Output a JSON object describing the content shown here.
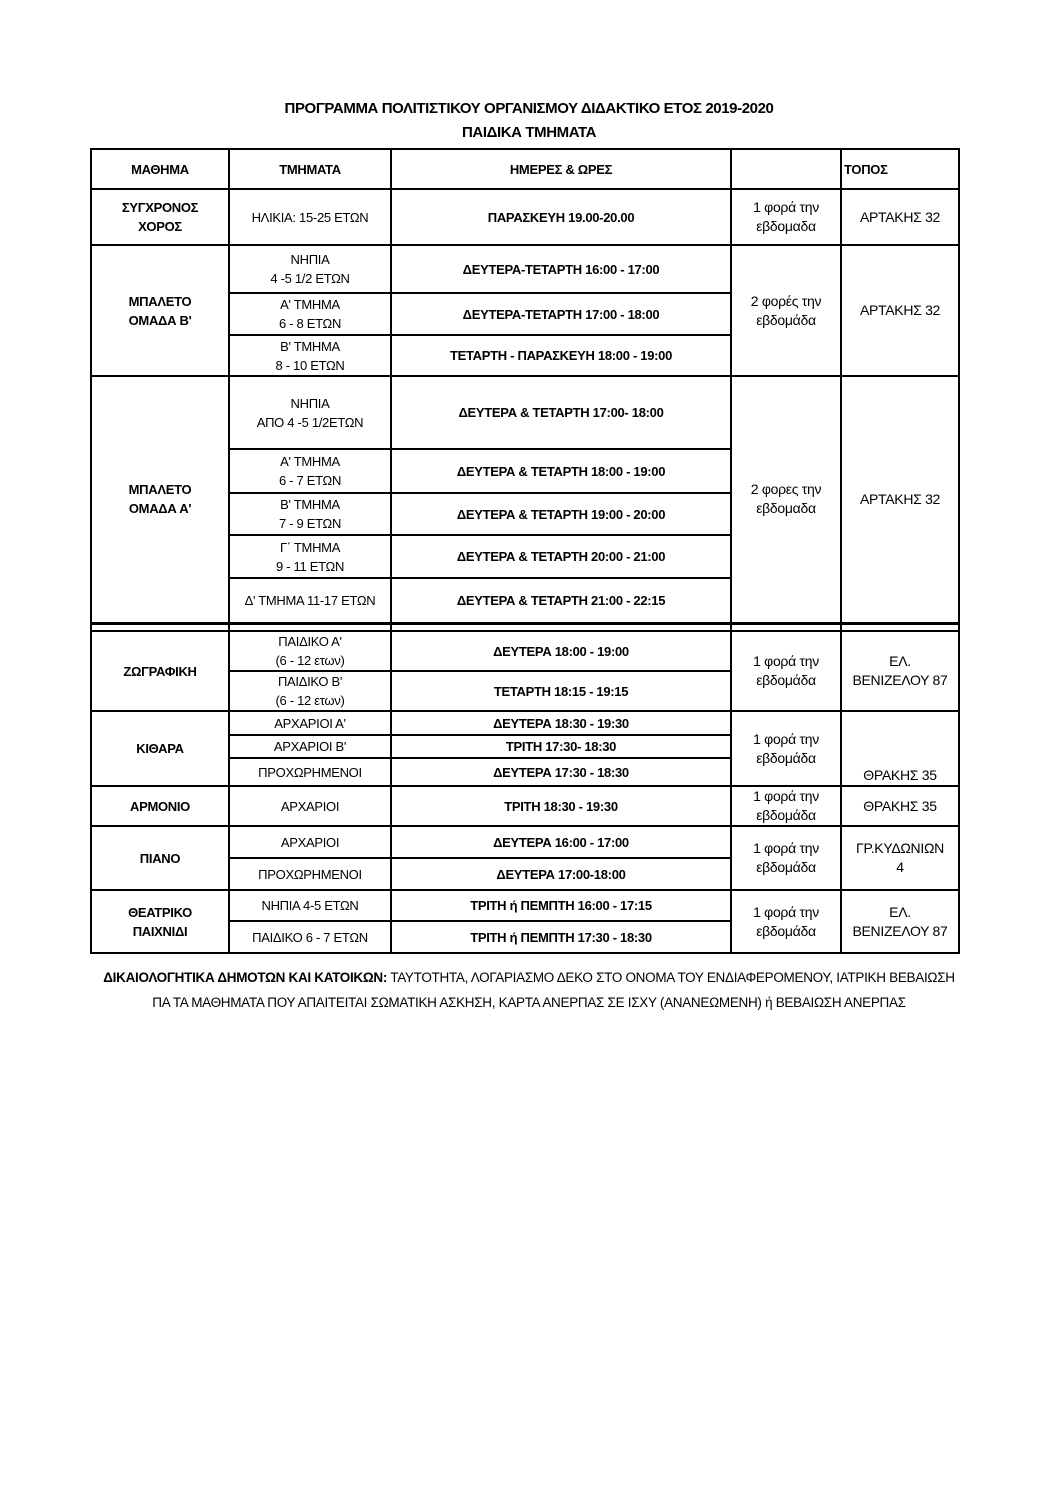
{
  "title": "ΠΡΟΓΡΑΜΜΑ ΠΟΛΙΤΙΣΤΙΚΟΥ ΟΡΓΑΝΙΣΜΟΥ ΔΙΔΑΚΤΙΚΟ ΕΤΟΣ 2019-2020",
  "subtitle": "ΠΑΙΔΙΚΑ ΤΜΗΜΑΤΑ",
  "headers": [
    "ΜΑΘΗΜΑ",
    "ΤΜΗΜΑΤΑ",
    "ΗΜΕΡΕΣ & ΩΡΕΣ",
    "",
    "ΤΟΠΟΣ"
  ],
  "subjects": [
    {
      "name": "ΣΥΓΧΡΟΝΟΣ\nΧΟΡΟΣ",
      "frequency": "1 φορά την\nεβδομαδα",
      "place": "ΑΡΤΑΚΗΣ 32",
      "sections": [
        {
          "group": "ΗΛΙΚΙΑ: 15-25 ΕΤΩΝ",
          "schedule": "ΠΑΡΑΣΚΕΥΗ 19.00-20.00"
        }
      ]
    },
    {
      "name": "ΜΠΑΛΕΤΟ\nΟΜΑΔΑ Β'",
      "frequency": "2 φορές την\nεβδομάδα",
      "place": "ΑΡΤΑΚΗΣ 32",
      "sections": [
        {
          "group": "ΝΗΠΙΑ\n4 -5 1/2 ΕΤΩΝ",
          "schedule": "ΔΕΥΤΕΡΑ-ΤΕΤΑΡΤΗ    16:00 - 17:00"
        },
        {
          "group": "Α' ΤΜΗΜΑ\n6 - 8 ΕΤΩΝ",
          "schedule": "ΔΕΥΤΕΡΑ-ΤΕΤΑΡΤΗ    17:00 - 18:00"
        },
        {
          "group": "Β' ΤΜΗΜΑ\n8 - 10 ΕΤΩΝ",
          "schedule": "ΤΕΤΑΡΤΗ - ΠΑΡΑΣΚΕΥΗ     18:00 - 19:00"
        }
      ]
    },
    {
      "name": "ΜΠΑΛΕΤΟ\nΟΜΑΔΑ Α'",
      "frequency": "2 φορες την\nεβδομαδα",
      "place": "ΑΡΤΑΚΗΣ 32",
      "sections": [
        {
          "group": "ΝΗΠΙΑ\nΑΠΟ 4 -5 1/2ΕΤΩΝ",
          "schedule": "ΔΕΥΤΕΡΑ & ΤΕΤΑΡΤΗ     17:00- 18:00"
        },
        {
          "group": "Α' ΤΜΗΜΑ\n6 - 7 ΕΤΩΝ",
          "schedule": "ΔΕΥΤΕΡΑ & ΤΕΤΑΡΤΗ     18:00 - 19:00"
        },
        {
          "group": "Β' ΤΜΗΜΑ\n7 - 9 ΕΤΩΝ",
          "schedule": "ΔΕΥΤΕΡΑ & ΤΕΤΑΡΤΗ     19:00 - 20:00"
        },
        {
          "group": "Γ΄ ΤΜΗΜΑ\n9 - 11 ΕΤΩΝ",
          "schedule": "ΔΕΥΤΕΡΑ & ΤΕΤΑΡΤΗ     20:00 - 21:00"
        },
        {
          "group": "Δ' ΤΜΗΜΑ 11-17 ΕΤΩΝ",
          "schedule": "ΔΕΥΤΕΡΑ & ΤΕΤΑΡΤΗ  21:00 - 22:15"
        }
      ]
    },
    {
      "name": "ΖΩΓΡΑΦΙΚΗ",
      "frequency": "1 φορά την\nεβδομάδα",
      "place": "ΕΛ.\nΒΕΝΙΖΕΛΟΥ 87",
      "sections": [
        {
          "group": "ΠΑΙΔΙΚΟ Α'\n(6 - 12 ετων)",
          "schedule": "ΔΕΥΤΕΡΑ    18:00 - 19:00"
        },
        {
          "group": "ΠΑΙΔΙΚΟ Β'\n(6 - 12 ετων)",
          "schedule": "ΤΕΤΑΡΤΗ     18:15 - 19:15"
        }
      ]
    },
    {
      "name": "ΚΙΘΑΡΑ",
      "frequency": "1 φορά την\nεβδομάδα",
      "place": "ΘΡΑΚΗΣ 35",
      "sections": [
        {
          "group": "ΑΡΧΑΡΙΟΙ Α'",
          "schedule": "ΔΕΥΤΕΡΑ 18:30 - 19:30"
        },
        {
          "group": "ΑΡΧΑΡΙΟΙ Β'",
          "schedule": "ΤΡΙΤΗ 17:30- 18:30"
        },
        {
          "group": "ΠΡΟΧΩΡΗΜΕΝΟΙ",
          "schedule": "ΔΕΥΤΕΡΑ 17:30 - 18:30"
        }
      ]
    },
    {
      "name": "ΑΡΜΟΝΙΟ",
      "frequency": "1 φορά την\nεβδομάδα",
      "place": "ΘΡΑΚΗΣ 35",
      "sections": [
        {
          "group": "ΑΡΧΑΡΙΟΙ",
          "schedule": "ΤΡΙΤΗ 18:30 - 19:30"
        }
      ]
    },
    {
      "name": "ΠΙΑΝΟ",
      "frequency": "1 φορά την\nεβδομάδα",
      "place": "ΓΡ.ΚΥΔΩΝΙΩΝ\n4",
      "sections": [
        {
          "group": "ΑΡΧΑΡΙΟΙ",
          "schedule": "ΔΕΥΤΕΡΑ  16:00 - 17:00"
        },
        {
          "group": "ΠΡΟΧΩΡΗΜΕΝΟΙ",
          "schedule": "ΔΕΥΤΕΡΑ 17:00-18:00"
        }
      ]
    },
    {
      "name": "ΘΕΑΤΡΙΚΟ\nΠΑΙΧΝΙΔΙ",
      "frequency": "1 φορά την\nεβδομάδα",
      "place": "ΕΛ.\nΒΕΝΙΖΕΛΟΥ 87",
      "sections": [
        {
          "group": "ΝΗΠΙΑ  4-5 ΕΤΩΝ",
          "schedule": "ΤΡΙΤΗ ή ΠΕΜΠΤΗ      16:00 - 17:15"
        },
        {
          "group": "ΠΑΙΔΙΚΟ   6 - 7  ΕΤΩΝ",
          "schedule": "ΤΡΙΤΗ ή  ΠΕΜΠΤΗ      17:30 - 18:30"
        }
      ]
    }
  ],
  "note": {
    "label": "ΔΙΚΑΙΟΛΟΓΗΤΙΚΑ  ΔΗΜΟΤΩΝ ΚΑΙ ΚΑΤΟΙΚΩΝ:",
    "text": " ΤΑΥΤΟΤΗΤΑ, ΛΟΓΑΡΙΑΣΜΟ ΔΕΚΟ ΣΤΟ ΟΝΟΜΑ ΤΟΥ ΕΝΔΙΑΦΕΡΟΜΕΝΟΥ, ΙΑΤΡΙΚΗ ΒΕΒΑΙΩΣΗ ΠΑ ΤΑ ΜΑΘΗΜΑΤΑ ΠΟΥ ΑΠΑΙΤΕΙΤΑΙ ΣΩΜΑΤΙΚΗ ΑΣΚΗΣΗ, ΚΑΡΤΑ ΑΝΕΡΠΑΣ ΣΕ ΙΣΧΥ (ΑΝΑΝΕΩΜΕΝΗ) ή ΒΕΒΑΙΩΣΗ ΑΝΕΡΠΑΣ"
  }
}
